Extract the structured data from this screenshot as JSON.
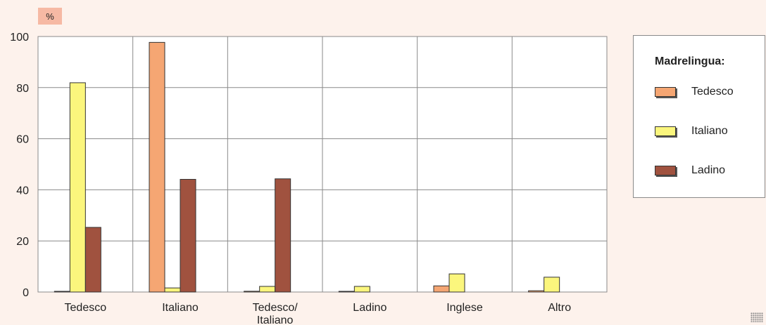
{
  "unit_label": "%",
  "legend": {
    "title": "Madrelingua:",
    "items": [
      {
        "label": "Tedesco",
        "color": "#f5a673"
      },
      {
        "label": "Italiano",
        "color": "#fbf67d"
      },
      {
        "label": "Ladino",
        "color": "#a0523f"
      }
    ]
  },
  "chart_data": {
    "type": "bar",
    "categories": [
      "Tedesco",
      "Italiano",
      "Tedesco/\nItaliano",
      "Ladino",
      "Inglese",
      "Altro"
    ],
    "series": [
      {
        "name": "Tedesco",
        "color": "#f5a673",
        "values": [
          0.2,
          97.7,
          0.3,
          0.2,
          2.4,
          0.5
        ]
      },
      {
        "name": "Italiano",
        "color": "#fbf67d",
        "values": [
          81.9,
          1.6,
          2.2,
          2.2,
          7.1,
          5.8
        ]
      },
      {
        "name": "Ladino",
        "color": "#a0523f",
        "values": [
          25.3,
          44.1,
          44.3,
          0.0,
          0.0,
          0.0
        ]
      }
    ],
    "yticks": [
      0,
      20,
      40,
      60,
      80,
      100
    ],
    "ylim": [
      0,
      100
    ],
    "grid": true,
    "legend_position": "right"
  }
}
